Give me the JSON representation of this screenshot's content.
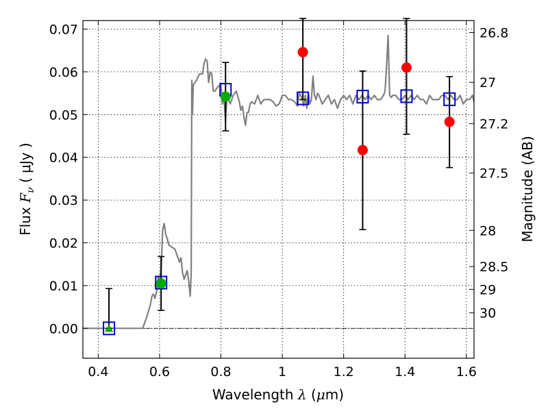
{
  "chart_data": {
    "type": "scatter",
    "title": "",
    "xlabel": {
      "prefix": "Wavelength ",
      "symbol": "λ",
      "unit_open": " (",
      "unit_mu": "μ",
      "unit_rest": "m)"
    },
    "ylabel": {
      "prefix": "Flux  ",
      "symbol_F": "F",
      "symbol_sub": "ν",
      "unit": "  ( μJy )"
    },
    "ylabel_right": "Magnitude (AB)",
    "xlim": [
      0.35,
      1.625
    ],
    "ylim": [
      -0.007,
      0.072
    ],
    "grid": true,
    "x_ticks": [
      {
        "value": 0.4,
        "label": "0.4"
      },
      {
        "value": 0.6,
        "label": "0.6"
      },
      {
        "value": 0.8,
        "label": "0.8"
      },
      {
        "value": 1.0,
        "label": "1"
      },
      {
        "value": 1.2,
        "label": "1.2"
      },
      {
        "value": 1.4,
        "label": "1.4"
      },
      {
        "value": 1.6,
        "label": "1.6"
      }
    ],
    "y_ticks": [
      {
        "value": 0.0,
        "label": "0.00"
      },
      {
        "value": 0.01,
        "label": "0.01"
      },
      {
        "value": 0.02,
        "label": "0.02"
      },
      {
        "value": 0.03,
        "label": "0.03"
      },
      {
        "value": 0.04,
        "label": "0.04"
      },
      {
        "value": 0.05,
        "label": "0.05"
      },
      {
        "value": 0.06,
        "label": "0.06"
      },
      {
        "value": 0.07,
        "label": "0.07"
      }
    ],
    "right_ticks": [
      {
        "mag": 26.8,
        "label": "26.8"
      },
      {
        "mag": 27.0,
        "label": "27"
      },
      {
        "mag": 27.2,
        "label": "27.2"
      },
      {
        "mag": 27.5,
        "label": "27.5"
      },
      {
        "mag": 28.0,
        "label": "28"
      },
      {
        "mag": 28.5,
        "label": "28.5"
      },
      {
        "mag": 29.0,
        "label": "29"
      },
      {
        "mag": 30.0,
        "label": "30"
      }
    ],
    "zero_line": 0.0,
    "model_spectrum": {
      "color": "#808080",
      "x": [
        0.35,
        0.52,
        0.53,
        0.545,
        0.56,
        0.57,
        0.575,
        0.58,
        0.585,
        0.59,
        0.595,
        0.6,
        0.605,
        0.61,
        0.615,
        0.62,
        0.625,
        0.63,
        0.64,
        0.65,
        0.655,
        0.66,
        0.665,
        0.67,
        0.675,
        0.68,
        0.685,
        0.69,
        0.695,
        0.7,
        0.703,
        0.705,
        0.707,
        0.71,
        0.72,
        0.73,
        0.74,
        0.745,
        0.75,
        0.755,
        0.76,
        0.765,
        0.77,
        0.775,
        0.78,
        0.79,
        0.8,
        0.805,
        0.81,
        0.812,
        0.815,
        0.818,
        0.82,
        0.83,
        0.84,
        0.85,
        0.86,
        0.865,
        0.87,
        0.875,
        0.88,
        0.885,
        0.89,
        0.895,
        0.9,
        0.91,
        0.92,
        0.93,
        0.94,
        0.95,
        0.96,
        0.97,
        0.98,
        0.99,
        1.0,
        1.01,
        1.02,
        1.03,
        1.04,
        1.05,
        1.055,
        1.06,
        1.065,
        1.07,
        1.075,
        1.08,
        1.085,
        1.09,
        1.095,
        1.1,
        1.105,
        1.11,
        1.115,
        1.12,
        1.13,
        1.14,
        1.15,
        1.16,
        1.17,
        1.18,
        1.19,
        1.2,
        1.21,
        1.22,
        1.23,
        1.24,
        1.25,
        1.26,
        1.27,
        1.28,
        1.29,
        1.3,
        1.31,
        1.32,
        1.33,
        1.335,
        1.34,
        1.345,
        1.35,
        1.355,
        1.36,
        1.37,
        1.38,
        1.39,
        1.4,
        1.41,
        1.42,
        1.43,
        1.44,
        1.45,
        1.46,
        1.47,
        1.48,
        1.49,
        1.5,
        1.51,
        1.52,
        1.53,
        1.54,
        1.55,
        1.56,
        1.57,
        1.58,
        1.59,
        1.6,
        1.61,
        1.62,
        1.625
      ],
      "y": [
        0.0,
        0.0,
        0.0,
        0.0,
        0.003,
        0.0055,
        0.0075,
        0.008,
        0.007,
        0.0085,
        0.012,
        0.0115,
        0.0135,
        0.023,
        0.0245,
        0.022,
        0.021,
        0.0195,
        0.019,
        0.0185,
        0.0175,
        0.0165,
        0.0155,
        0.0165,
        0.013,
        0.0115,
        0.0125,
        0.0135,
        0.011,
        0.0075,
        0.013,
        0.058,
        0.05,
        0.057,
        0.058,
        0.0595,
        0.0595,
        0.062,
        0.063,
        0.0625,
        0.0575,
        0.06,
        0.0595,
        0.0555,
        0.0555,
        0.0565,
        0.057,
        0.0525,
        0.0545,
        0.0515,
        0.0485,
        0.052,
        0.0545,
        0.0525,
        0.0545,
        0.0555,
        0.053,
        0.051,
        0.052,
        0.0495,
        0.0475,
        0.0505,
        0.0505,
        0.0525,
        0.053,
        0.0525,
        0.0545,
        0.0525,
        0.0535,
        0.0535,
        0.0535,
        0.053,
        0.052,
        0.0525,
        0.0545,
        0.0545,
        0.0535,
        0.0535,
        0.053,
        0.052,
        0.055,
        0.0545,
        0.0535,
        0.052,
        0.0545,
        0.0515,
        0.055,
        0.0525,
        0.0535,
        0.059,
        0.0545,
        0.0535,
        0.055,
        0.0545,
        0.0525,
        0.0535,
        0.0545,
        0.0525,
        0.0535,
        0.0515,
        0.0535,
        0.0545,
        0.0535,
        0.0545,
        0.0525,
        0.0545,
        0.0535,
        0.0545,
        0.0535,
        0.0545,
        0.0535,
        0.0545,
        0.0535,
        0.0535,
        0.0545,
        0.0555,
        0.0615,
        0.0685,
        0.0545,
        0.054,
        0.0545,
        0.0545,
        0.0535,
        0.0535,
        0.0545,
        0.0535,
        0.0545,
        0.0535,
        0.0545,
        0.0535,
        0.0535,
        0.0525,
        0.0545,
        0.0535,
        0.0535,
        0.0535,
        0.0545,
        0.0545,
        0.0535,
        0.0545,
        0.0535,
        0.0535,
        0.0545,
        0.0525,
        0.0535,
        0.0535,
        0.0545,
        0.053
      ]
    },
    "error_bars": [
      {
        "x": 0.435,
        "ylo": 0.0,
        "yhi": 0.0093
      },
      {
        "x": 0.605,
        "ylo": 0.0042,
        "yhi": 0.0168
      },
      {
        "x": 0.815,
        "ylo": 0.0462,
        "yhi": 0.0622
      },
      {
        "x": 1.067,
        "ylo": 0.0535,
        "yhi": 0.0725
      },
      {
        "x": 1.262,
        "ylo": 0.0231,
        "yhi": 0.0602
      },
      {
        "x": 1.405,
        "ylo": 0.0454,
        "yhi": 0.0725
      },
      {
        "x": 1.545,
        "ylo": 0.0376,
        "yhi": 0.0589
      }
    ],
    "series": [
      {
        "marker": "square",
        "color": "#0000cc",
        "points": [
          [
            0.435,
            0.0
          ],
          [
            0.605,
            0.0107
          ],
          [
            0.815,
            0.0558
          ],
          [
            1.067,
            0.0538
          ],
          [
            1.262,
            0.0542
          ],
          [
            1.405,
            0.0543
          ],
          [
            1.545,
            0.0536
          ]
        ]
      },
      {
        "marker": "circle",
        "color": "#ff0000",
        "points": [
          [
            1.067,
            0.0646
          ],
          [
            1.262,
            0.0417
          ],
          [
            1.405,
            0.061
          ],
          [
            1.545,
            0.0483
          ]
        ]
      },
      {
        "marker": "circle",
        "color": "#00aa00",
        "points": [
          [
            0.605,
            0.0105
          ],
          [
            0.815,
            0.0542
          ]
        ]
      },
      {
        "marker": "triangle",
        "color": "#00aa00",
        "points": [
          [
            0.435,
            0.0
          ]
        ]
      }
    ]
  }
}
